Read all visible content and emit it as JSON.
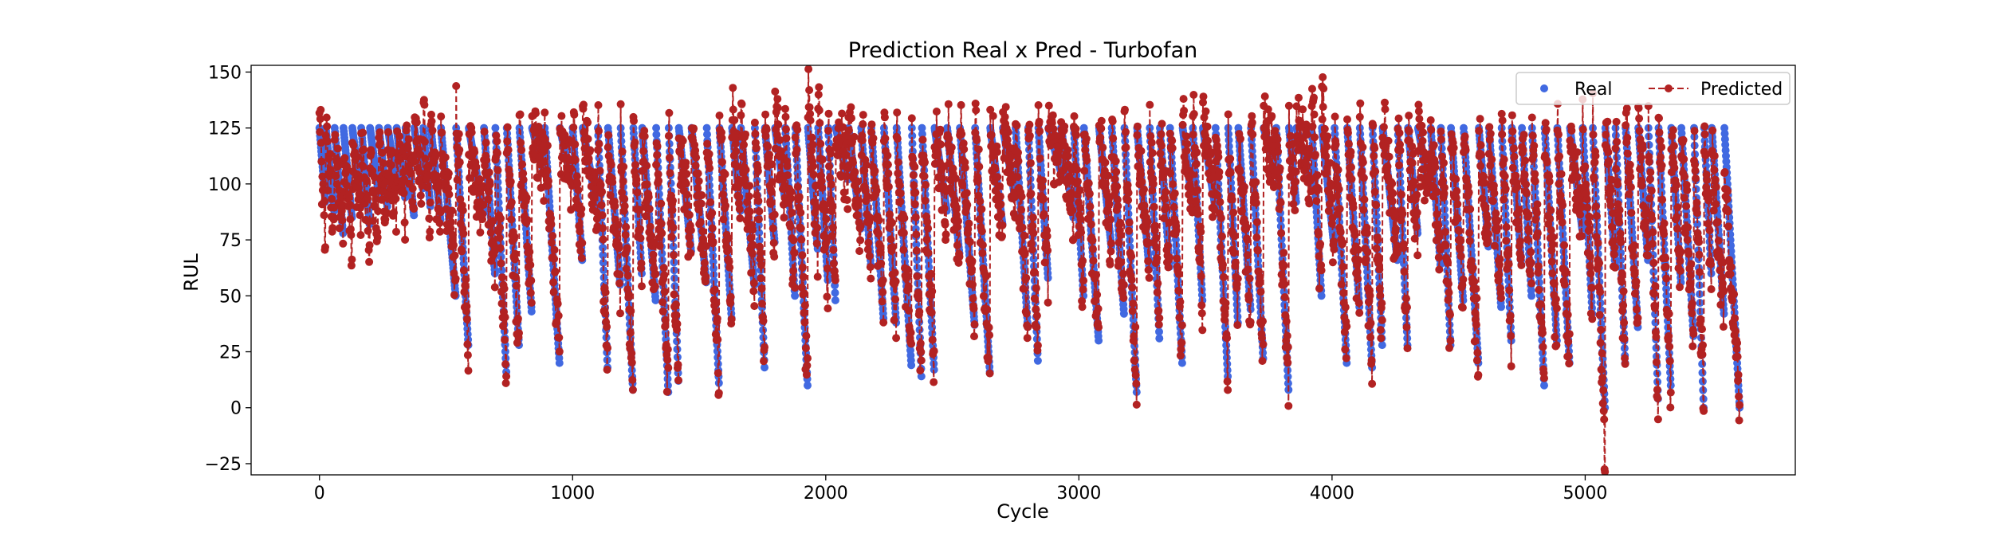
{
  "chart_data": {
    "type": "scatter",
    "title": "Prediction Real x Pred - Turbofan",
    "xlabel": "Cycle",
    "ylabel": "RUL",
    "xlim": [
      -270,
      5830
    ],
    "ylim": [
      -30,
      153
    ],
    "xticks": [
      0,
      1000,
      2000,
      3000,
      4000,
      5000
    ],
    "xtick_labels": [
      "0",
      "1000",
      "2000",
      "3000",
      "4000",
      "5000"
    ],
    "yticks": [
      -25,
      0,
      25,
      50,
      75,
      100,
      125,
      150
    ],
    "ytick_labels": [
      "−25",
      "0",
      "25",
      "50",
      "75",
      "100",
      "125",
      "150"
    ],
    "grid": false,
    "legend": {
      "placement": "top-right",
      "columns": 2
    },
    "series": [
      {
        "name": "Real",
        "style": "markers",
        "color": "#4169e1",
        "segments": [
          [
            0,
            125,
            92
          ],
          [
            25,
            125,
            88
          ],
          [
            60,
            125,
            78
          ],
          [
            95,
            125,
            85
          ],
          [
            130,
            125,
            95
          ],
          [
            165,
            125,
            82
          ],
          [
            200,
            125,
            96
          ],
          [
            235,
            125,
            90
          ],
          [
            270,
            125,
            101
          ],
          [
            305,
            125,
            94
          ],
          [
            340,
            125,
            86
          ],
          [
            375,
            125,
            98
          ],
          [
            410,
            125,
            90
          ],
          [
            440,
            125,
            84
          ],
          [
            480,
            125,
            50
          ],
          [
            540,
            125,
            28
          ],
          [
            590,
            125,
            87
          ],
          [
            650,
            125,
            60
          ],
          [
            695,
            125,
            16
          ],
          [
            740,
            125,
            28
          ],
          [
            790,
            125,
            43
          ],
          [
            840,
            125,
            105
          ],
          [
            890,
            125,
            20
          ],
          [
            950,
            125,
            100
          ],
          [
            1000,
            125,
            66
          ],
          [
            1040,
            125,
            88
          ],
          [
            1100,
            125,
            18
          ],
          [
            1140,
            125,
            55
          ],
          [
            1190,
            125,
            8
          ],
          [
            1240,
            125,
            60
          ],
          [
            1275,
            125,
            48
          ],
          [
            1330,
            125,
            7
          ],
          [
            1380,
            125,
            12
          ],
          [
            1420,
            125,
            70
          ],
          [
            1470,
            125,
            56
          ],
          [
            1530,
            125,
            11
          ],
          [
            1580,
            125,
            40
          ],
          [
            1630,
            125,
            88
          ],
          [
            1665,
            125,
            55
          ],
          [
            1720,
            125,
            18
          ],
          [
            1760,
            125,
            74
          ],
          [
            1800,
            125,
            94
          ],
          [
            1840,
            125,
            50
          ],
          [
            1880,
            125,
            10
          ],
          [
            1930,
            125,
            71
          ],
          [
            1970,
            125,
            57
          ],
          [
            2010,
            125,
            48
          ],
          [
            2040,
            125,
            102
          ],
          [
            2090,
            125,
            80
          ],
          [
            2140,
            125,
            64
          ],
          [
            2180,
            125,
            40
          ],
          [
            2230,
            125,
            38
          ],
          [
            2280,
            125,
            19
          ],
          [
            2340,
            125,
            14
          ],
          [
            2380,
            125,
            17
          ],
          [
            2430,
            125,
            88
          ],
          [
            2480,
            125,
            69
          ],
          [
            2530,
            125,
            37
          ],
          [
            2590,
            125,
            16
          ],
          [
            2650,
            125,
            82
          ],
          [
            2700,
            125,
            94
          ],
          [
            2750,
            125,
            36
          ],
          [
            2800,
            125,
            21
          ],
          [
            2840,
            125,
            58
          ],
          [
            2880,
            125,
            106
          ],
          [
            2930,
            125,
            85
          ],
          [
            2980,
            125,
            50
          ],
          [
            3020,
            125,
            30
          ],
          [
            3080,
            125,
            72
          ],
          [
            3130,
            125,
            42
          ],
          [
            3180,
            125,
            7
          ],
          [
            3230,
            125,
            62
          ],
          [
            3280,
            125,
            31
          ],
          [
            3320,
            125,
            63
          ],
          [
            3360,
            125,
            20
          ],
          [
            3410,
            125,
            91
          ],
          [
            3450,
            125,
            48
          ],
          [
            3490,
            125,
            90
          ],
          [
            3540,
            125,
            14
          ],
          [
            3590,
            125,
            38
          ],
          [
            3630,
            125,
            44
          ],
          [
            3680,
            125,
            22
          ],
          [
            3730,
            125,
            107
          ],
          [
            3780,
            125,
            8
          ],
          [
            3830,
            125,
            92
          ],
          [
            3860,
            125,
            100
          ],
          [
            3920,
            125,
            50
          ],
          [
            3960,
            125,
            72
          ],
          [
            4010,
            125,
            20
          ],
          [
            4060,
            125,
            45
          ],
          [
            4110,
            125,
            18
          ],
          [
            4160,
            125,
            28
          ],
          [
            4200,
            125,
            66
          ],
          [
            4260,
            125,
            28
          ],
          [
            4300,
            125,
            78
          ],
          [
            4340,
            125,
            96
          ],
          [
            4390,
            125,
            64
          ],
          [
            4430,
            125,
            28
          ],
          [
            4470,
            125,
            48
          ],
          [
            4520,
            125,
            20
          ],
          [
            4580,
            125,
            72
          ],
          [
            4620,
            125,
            45
          ],
          [
            4670,
            125,
            30
          ],
          [
            4710,
            125,
            64
          ],
          [
            4750,
            125,
            50
          ],
          [
            4790,
            125,
            10
          ],
          [
            4840,
            125,
            30
          ],
          [
            4890,
            125,
            20
          ],
          [
            4940,
            125,
            80
          ],
          [
            4990,
            125,
            42
          ],
          [
            5030,
            125,
            0
          ],
          [
            5080,
            125,
            64
          ],
          [
            5120,
            125,
            20
          ],
          [
            5160,
            125,
            36
          ],
          [
            5210,
            125,
            66
          ],
          [
            5250,
            125,
            4
          ],
          [
            5290,
            125,
            10
          ],
          [
            5340,
            125,
            56
          ],
          [
            5380,
            125,
            32
          ],
          [
            5430,
            125,
            0
          ],
          [
            5470,
            125,
            60
          ],
          [
            5500,
            125,
            42
          ],
          [
            5550,
            125,
            0
          ]
        ]
      },
      {
        "name": "Predicted",
        "style": "line-markers-dashed",
        "color": "#b22222",
        "segments": [
          [
            0,
            128,
            72
          ],
          [
            25,
            123,
            78
          ],
          [
            60,
            115,
            80
          ],
          [
            95,
            120,
            72
          ],
          [
            130,
            112,
            88
          ],
          [
            165,
            118,
            74
          ],
          [
            200,
            108,
            80
          ],
          [
            235,
            112,
            92
          ],
          [
            270,
            110,
            88
          ],
          [
            305,
            120,
            92
          ],
          [
            340,
            122,
            90
          ],
          [
            375,
            126,
            94
          ],
          [
            410,
            130,
            88
          ],
          [
            440,
            124,
            82
          ],
          [
            480,
            120,
            60
          ],
          [
            540,
            128,
            32
          ],
          [
            590,
            120,
            86
          ],
          [
            650,
            120,
            60
          ],
          [
            695,
            118,
            20
          ],
          [
            740,
            120,
            32
          ],
          [
            790,
            126,
            48
          ],
          [
            840,
            124,
            106
          ],
          [
            890,
            120,
            26
          ],
          [
            950,
            118,
            100
          ],
          [
            1000,
            124,
            70
          ],
          [
            1040,
            125,
            88
          ],
          [
            1100,
            122,
            24
          ],
          [
            1140,
            120,
            58
          ],
          [
            1190,
            124,
            10
          ],
          [
            1240,
            128,
            62
          ],
          [
            1275,
            122,
            52
          ],
          [
            1330,
            118,
            10
          ],
          [
            1380,
            120,
            16
          ],
          [
            1420,
            122,
            72
          ],
          [
            1470,
            126,
            58
          ],
          [
            1530,
            124,
            14
          ],
          [
            1580,
            128,
            42
          ],
          [
            1630,
            134,
            86
          ],
          [
            1665,
            130,
            58
          ],
          [
            1720,
            128,
            22
          ],
          [
            1760,
            130,
            76
          ],
          [
            1800,
            132,
            94
          ],
          [
            1840,
            128,
            54
          ],
          [
            1880,
            130,
            14
          ],
          [
            1930,
            140,
            72
          ],
          [
            1970,
            136,
            58
          ],
          [
            2010,
            130,
            50
          ],
          [
            2040,
            128,
            102
          ],
          [
            2090,
            126,
            80
          ],
          [
            2140,
            128,
            66
          ],
          [
            2180,
            122,
            44
          ],
          [
            2230,
            124,
            40
          ],
          [
            2280,
            120,
            24
          ],
          [
            2340,
            124,
            18
          ],
          [
            2380,
            122,
            20
          ],
          [
            2430,
            124,
            88
          ],
          [
            2480,
            126,
            70
          ],
          [
            2530,
            128,
            40
          ],
          [
            2590,
            126,
            18
          ],
          [
            2650,
            124,
            82
          ],
          [
            2700,
            126,
            94
          ],
          [
            2750,
            122,
            40
          ],
          [
            2800,
            124,
            24
          ],
          [
            2840,
            126,
            60
          ],
          [
            2880,
            124,
            106
          ],
          [
            2930,
            122,
            86
          ],
          [
            2980,
            128,
            52
          ],
          [
            3020,
            126,
            32
          ],
          [
            3080,
            128,
            74
          ],
          [
            3130,
            124,
            44
          ],
          [
            3180,
            126,
            10
          ],
          [
            3230,
            122,
            64
          ],
          [
            3280,
            126,
            34
          ],
          [
            3320,
            128,
            64
          ],
          [
            3360,
            124,
            22
          ],
          [
            3410,
            124,
            92
          ],
          [
            3450,
            130,
            50
          ],
          [
            3490,
            128,
            90
          ],
          [
            3540,
            126,
            16
          ],
          [
            3590,
            124,
            40
          ],
          [
            3630,
            122,
            46
          ],
          [
            3680,
            124,
            24
          ],
          [
            3730,
            126,
            106
          ],
          [
            3780,
            124,
            10
          ],
          [
            3830,
            122,
            92
          ],
          [
            3860,
            128,
            100
          ],
          [
            3920,
            140,
            52
          ],
          [
            3960,
            138,
            74
          ],
          [
            4010,
            126,
            24
          ],
          [
            4060,
            124,
            46
          ],
          [
            4110,
            126,
            20
          ],
          [
            4160,
            124,
            30
          ],
          [
            4200,
            128,
            68
          ],
          [
            4260,
            126,
            30
          ],
          [
            4300,
            124,
            78
          ],
          [
            4340,
            120,
            96
          ],
          [
            4390,
            122,
            66
          ],
          [
            4430,
            118,
            30
          ],
          [
            4470,
            122,
            50
          ],
          [
            4520,
            124,
            22
          ],
          [
            4580,
            124,
            72
          ],
          [
            4620,
            122,
            46
          ],
          [
            4670,
            126,
            32
          ],
          [
            4710,
            124,
            66
          ],
          [
            4750,
            126,
            52
          ],
          [
            4790,
            124,
            12
          ],
          [
            4840,
            126,
            32
          ],
          [
            4890,
            124,
            22
          ],
          [
            4940,
            122,
            80
          ],
          [
            4990,
            126,
            44
          ],
          [
            5030,
            130,
            -18
          ],
          [
            5080,
            128,
            66
          ],
          [
            5120,
            124,
            22
          ],
          [
            5160,
            126,
            38
          ],
          [
            5210,
            128,
            66
          ],
          [
            5250,
            124,
            6
          ],
          [
            5290,
            126,
            12
          ],
          [
            5340,
            124,
            58
          ],
          [
            5380,
            122,
            34
          ],
          [
            5430,
            120,
            4
          ],
          [
            5470,
            118,
            60
          ],
          [
            5500,
            116,
            44
          ],
          [
            5550,
            100,
            4
          ]
        ]
      }
    ]
  }
}
